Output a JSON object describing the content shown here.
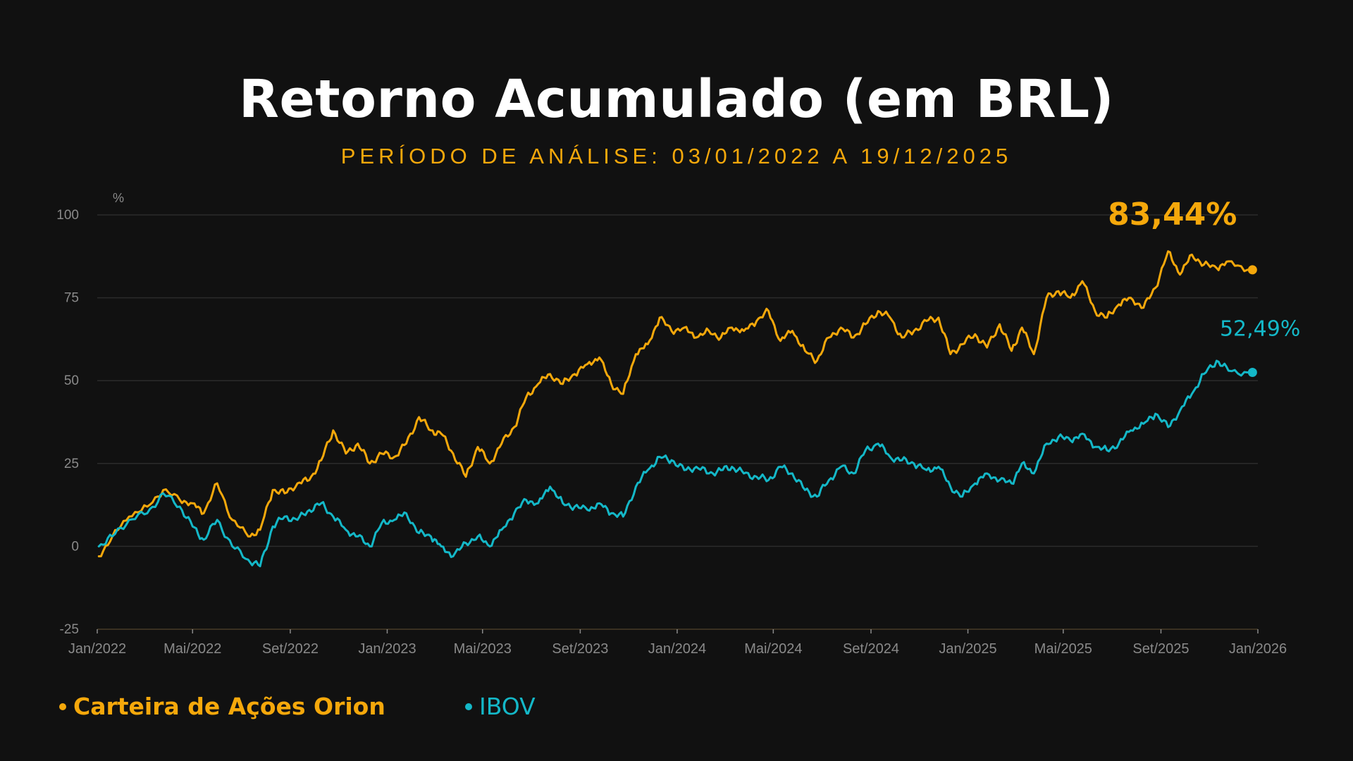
{
  "title": "Retorno Acumulado (em BRL)",
  "subtitle": "PERÍODO DE ANÁLISE: 03/01/2022 A 19/12/2025",
  "colors": {
    "background": "#111111",
    "orion": "#f5a80b",
    "ibov": "#14b8c8",
    "axis_text": "#8a8a8a",
    "grid": "#2b2b2b"
  },
  "chart_data": {
    "type": "line",
    "y_unit_label": "%",
    "ylim": [
      -25,
      100
    ],
    "yticks": [
      100,
      75,
      50,
      25,
      0,
      -25
    ],
    "ytick_labels": [
      "100",
      "75",
      "50",
      "25",
      "0",
      "-25"
    ],
    "xlim": [
      "2022-01-01",
      "2026-01-01"
    ],
    "xticks": [
      "2022-01-01",
      "2022-05-01",
      "2022-09-01",
      "2023-01-01",
      "2023-05-01",
      "2023-09-01",
      "2024-01-01",
      "2024-05-01",
      "2024-09-01",
      "2025-01-01",
      "2025-05-01",
      "2025-09-01",
      "2026-01-01"
    ],
    "xtick_labels": [
      "Jan/2022",
      "Mai/2022",
      "Set/2022",
      "Jan/2023",
      "Mai/2023",
      "Set/2023",
      "Jan/2024",
      "Mai/2024",
      "Set/2024",
      "Jan/2025",
      "Mai/2025",
      "Set/2025",
      "Jan/2026"
    ],
    "grid": true,
    "legend_position": "bottom-left",
    "series": [
      {
        "name": "Carteira de Ações Orion",
        "color": "#f5a80b",
        "end_label": "83,44%",
        "end_value": 83.44,
        "points": [
          [
            "2022-01-03",
            -3
          ],
          [
            "2022-01-20",
            3
          ],
          [
            "2022-02-10",
            9
          ],
          [
            "2022-03-05",
            12
          ],
          [
            "2022-03-25",
            17
          ],
          [
            "2022-04-15",
            14
          ],
          [
            "2022-05-01",
            13
          ],
          [
            "2022-05-15",
            10
          ],
          [
            "2022-06-01",
            19
          ],
          [
            "2022-06-20",
            8
          ],
          [
            "2022-07-10",
            3
          ],
          [
            "2022-07-25",
            5
          ],
          [
            "2022-08-10",
            17
          ],
          [
            "2022-08-25",
            16
          ],
          [
            "2022-09-10",
            19
          ],
          [
            "2022-09-25",
            20
          ],
          [
            "2022-10-10",
            26
          ],
          [
            "2022-10-25",
            35
          ],
          [
            "2022-11-10",
            28
          ],
          [
            "2022-11-25",
            31
          ],
          [
            "2022-12-10",
            25
          ],
          [
            "2022-12-25",
            28
          ],
          [
            "2023-01-10",
            27
          ],
          [
            "2023-01-25",
            31
          ],
          [
            "2023-02-10",
            39
          ],
          [
            "2023-02-25",
            35
          ],
          [
            "2023-03-10",
            34
          ],
          [
            "2023-03-25",
            28
          ],
          [
            "2023-04-10",
            21
          ],
          [
            "2023-04-25",
            30
          ],
          [
            "2023-05-10",
            25
          ],
          [
            "2023-05-25",
            31
          ],
          [
            "2023-06-10",
            36
          ],
          [
            "2023-06-25",
            45
          ],
          [
            "2023-07-10",
            49
          ],
          [
            "2023-07-25",
            52
          ],
          [
            "2023-08-10",
            49
          ],
          [
            "2023-08-25",
            52
          ],
          [
            "2023-09-10",
            55
          ],
          [
            "2023-09-25",
            57
          ],
          [
            "2023-10-10",
            49
          ],
          [
            "2023-10-25",
            46
          ],
          [
            "2023-11-10",
            58
          ],
          [
            "2023-11-25",
            61
          ],
          [
            "2023-12-10",
            69
          ],
          [
            "2023-12-25",
            65
          ],
          [
            "2024-01-10",
            66
          ],
          [
            "2024-01-25",
            63
          ],
          [
            "2024-02-10",
            65
          ],
          [
            "2024-02-25",
            63
          ],
          [
            "2024-03-10",
            66
          ],
          [
            "2024-03-25",
            65
          ],
          [
            "2024-04-10",
            68
          ],
          [
            "2024-04-25",
            71
          ],
          [
            "2024-05-10",
            62
          ],
          [
            "2024-05-25",
            65
          ],
          [
            "2024-06-10",
            59
          ],
          [
            "2024-06-25",
            56
          ],
          [
            "2024-07-10",
            63
          ],
          [
            "2024-07-25",
            66
          ],
          [
            "2024-08-10",
            63
          ],
          [
            "2024-08-25",
            67
          ],
          [
            "2024-09-10",
            71
          ],
          [
            "2024-09-25",
            69
          ],
          [
            "2024-10-10",
            63
          ],
          [
            "2024-10-25",
            65
          ],
          [
            "2024-11-10",
            68
          ],
          [
            "2024-11-25",
            69
          ],
          [
            "2024-12-10",
            58
          ],
          [
            "2024-12-25",
            61
          ],
          [
            "2025-01-10",
            64
          ],
          [
            "2025-01-25",
            60
          ],
          [
            "2025-02-10",
            67
          ],
          [
            "2025-02-25",
            59
          ],
          [
            "2025-03-10",
            66
          ],
          [
            "2025-03-25",
            58
          ],
          [
            "2025-04-10",
            75
          ],
          [
            "2025-04-25",
            77
          ],
          [
            "2025-05-10",
            75
          ],
          [
            "2025-05-25",
            80
          ],
          [
            "2025-06-10",
            71
          ],
          [
            "2025-06-25",
            69
          ],
          [
            "2025-07-10",
            73
          ],
          [
            "2025-07-25",
            75
          ],
          [
            "2025-08-10",
            72
          ],
          [
            "2025-08-25",
            78
          ],
          [
            "2025-09-10",
            89
          ],
          [
            "2025-09-25",
            82
          ],
          [
            "2025-10-10",
            88
          ],
          [
            "2025-10-25",
            85
          ],
          [
            "2025-11-10",
            84
          ],
          [
            "2025-11-25",
            86
          ],
          [
            "2025-12-19",
            83.44
          ]
        ]
      },
      {
        "name": "IBOV",
        "color": "#14b8c8",
        "end_label": "52,49%",
        "end_value": 52.49,
        "points": [
          [
            "2022-01-03",
            0
          ],
          [
            "2022-01-20",
            3
          ],
          [
            "2022-02-10",
            8
          ],
          [
            "2022-03-05",
            10
          ],
          [
            "2022-03-25",
            16
          ],
          [
            "2022-04-15",
            12
          ],
          [
            "2022-05-01",
            6
          ],
          [
            "2022-05-15",
            2
          ],
          [
            "2022-06-01",
            8
          ],
          [
            "2022-06-20",
            0
          ],
          [
            "2022-07-10",
            -4
          ],
          [
            "2022-07-25",
            -6
          ],
          [
            "2022-08-10",
            6
          ],
          [
            "2022-08-25",
            9
          ],
          [
            "2022-09-10",
            8
          ],
          [
            "2022-09-25",
            11
          ],
          [
            "2022-10-10",
            13
          ],
          [
            "2022-10-25",
            9
          ],
          [
            "2022-11-10",
            5
          ],
          [
            "2022-11-25",
            3
          ],
          [
            "2022-12-10",
            0
          ],
          [
            "2022-12-25",
            7
          ],
          [
            "2023-01-10",
            8
          ],
          [
            "2023-01-25",
            10
          ],
          [
            "2023-02-10",
            4
          ],
          [
            "2023-02-25",
            3
          ],
          [
            "2023-03-10",
            0
          ],
          [
            "2023-03-25",
            -3
          ],
          [
            "2023-04-10",
            1
          ],
          [
            "2023-04-25",
            3
          ],
          [
            "2023-05-10",
            0
          ],
          [
            "2023-05-25",
            5
          ],
          [
            "2023-06-10",
            10
          ],
          [
            "2023-06-25",
            14
          ],
          [
            "2023-07-10",
            13
          ],
          [
            "2023-07-25",
            18
          ],
          [
            "2023-08-10",
            13
          ],
          [
            "2023-08-25",
            12
          ],
          [
            "2023-09-10",
            11
          ],
          [
            "2023-09-25",
            13
          ],
          [
            "2023-10-10",
            10
          ],
          [
            "2023-10-25",
            9
          ],
          [
            "2023-11-10",
            18
          ],
          [
            "2023-11-25",
            23
          ],
          [
            "2023-12-10",
            27
          ],
          [
            "2023-12-25",
            26
          ],
          [
            "2024-01-10",
            23
          ],
          [
            "2024-01-25",
            24
          ],
          [
            "2024-02-10",
            22
          ],
          [
            "2024-02-25",
            23
          ],
          [
            "2024-03-10",
            24
          ],
          [
            "2024-03-25",
            22
          ],
          [
            "2024-04-10",
            21
          ],
          [
            "2024-04-25",
            20
          ],
          [
            "2024-05-10",
            24
          ],
          [
            "2024-05-25",
            22
          ],
          [
            "2024-06-10",
            17
          ],
          [
            "2024-06-25",
            15
          ],
          [
            "2024-07-10",
            20
          ],
          [
            "2024-07-25",
            24
          ],
          [
            "2024-08-10",
            22
          ],
          [
            "2024-08-25",
            29
          ],
          [
            "2024-09-10",
            31
          ],
          [
            "2024-09-25",
            27
          ],
          [
            "2024-10-10",
            26
          ],
          [
            "2024-10-25",
            25
          ],
          [
            "2024-11-10",
            23
          ],
          [
            "2024-11-25",
            24
          ],
          [
            "2024-12-10",
            18
          ],
          [
            "2024-12-25",
            15
          ],
          [
            "2025-01-10",
            19
          ],
          [
            "2025-01-25",
            22
          ],
          [
            "2025-02-10",
            20
          ],
          [
            "2025-02-25",
            19
          ],
          [
            "2025-03-10",
            25
          ],
          [
            "2025-03-25",
            22
          ],
          [
            "2025-04-10",
            31
          ],
          [
            "2025-04-25",
            33
          ],
          [
            "2025-05-10",
            32
          ],
          [
            "2025-05-25",
            34
          ],
          [
            "2025-06-10",
            30
          ],
          [
            "2025-06-25",
            29
          ],
          [
            "2025-07-10",
            31
          ],
          [
            "2025-07-25",
            35
          ],
          [
            "2025-08-10",
            37
          ],
          [
            "2025-08-25",
            40
          ],
          [
            "2025-09-10",
            36
          ],
          [
            "2025-09-25",
            41
          ],
          [
            "2025-10-10",
            46
          ],
          [
            "2025-10-25",
            52
          ],
          [
            "2025-11-10",
            56
          ],
          [
            "2025-11-25",
            53
          ],
          [
            "2025-12-19",
            52.49
          ]
        ]
      }
    ]
  }
}
